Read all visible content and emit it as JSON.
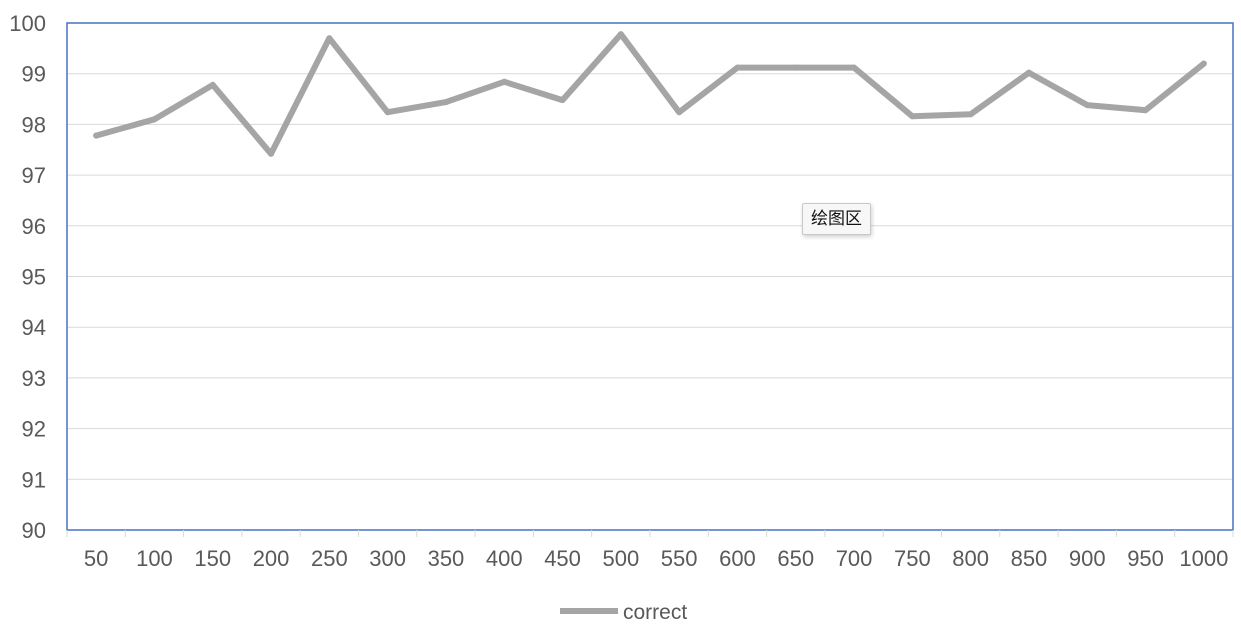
{
  "tooltip": {
    "text": "绘图区"
  },
  "chart_data": {
    "type": "line",
    "categories": [
      "50",
      "100",
      "150",
      "200",
      "250",
      "300",
      "350",
      "400",
      "450",
      "500",
      "550",
      "600",
      "650",
      "700",
      "750",
      "800",
      "850",
      "900",
      "950",
      "1000"
    ],
    "series": [
      {
        "name": "correct",
        "color": "#a5a5a5",
        "values": [
          97.78,
          98.1,
          98.78,
          97.42,
          99.7,
          98.24,
          98.44,
          98.84,
          98.48,
          99.78,
          98.24,
          99.12,
          99.12,
          99.12,
          98.16,
          98.2,
          99.02,
          98.38,
          98.28,
          99.2
        ]
      }
    ],
    "ylim": [
      90,
      100
    ],
    "yticks": [
      90,
      91,
      92,
      93,
      94,
      95,
      96,
      97,
      98,
      99,
      100
    ],
    "grid": true,
    "legend": "bottom",
    "title": "",
    "xlabel": "",
    "ylabel": ""
  },
  "colors": {
    "axis": "#4472c4",
    "gridline": "#d9d9d9",
    "line": "#a5a5a5"
  }
}
